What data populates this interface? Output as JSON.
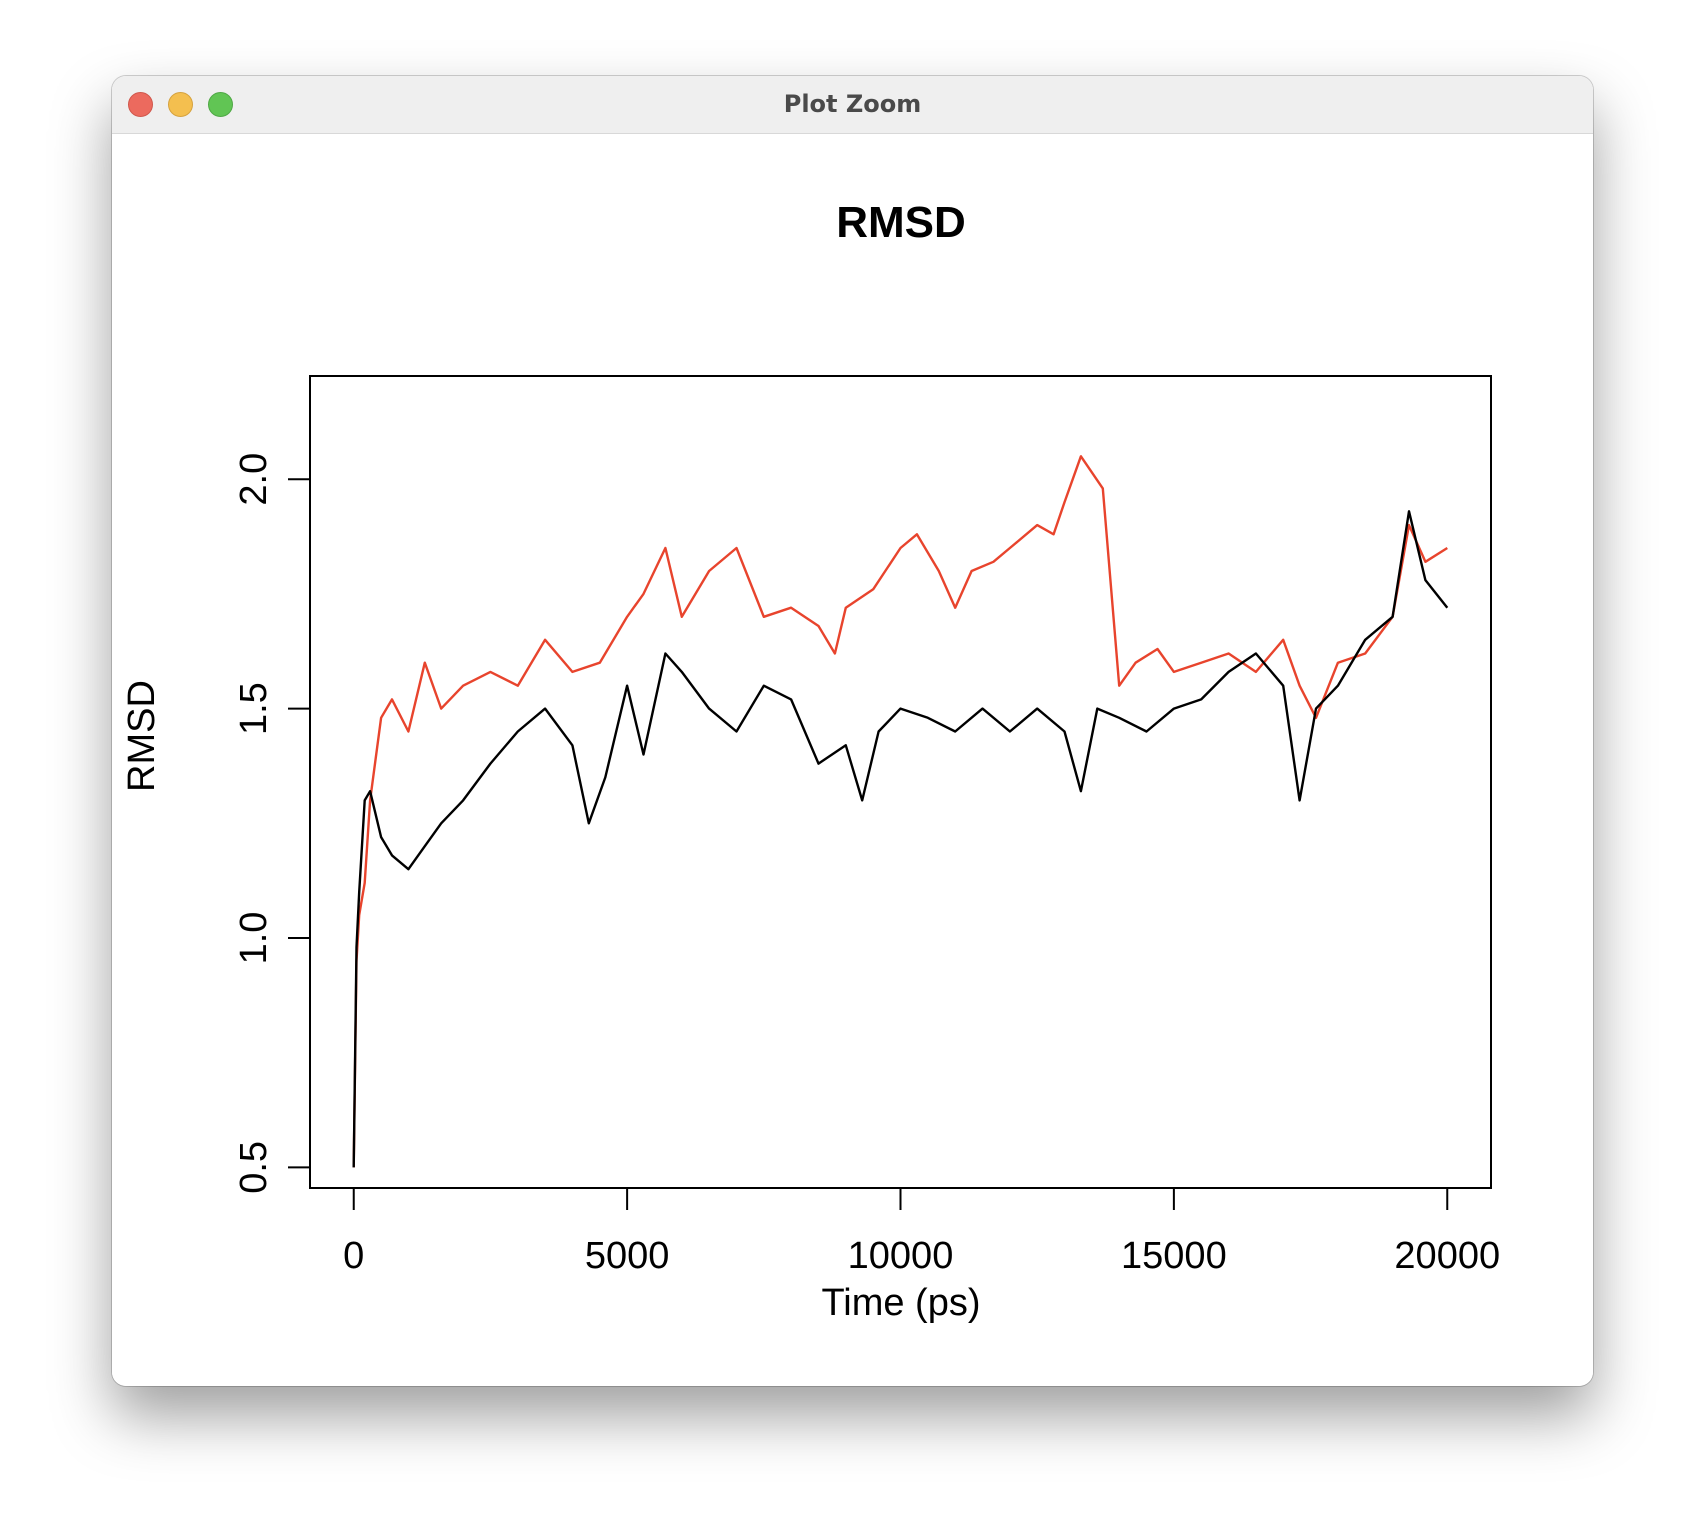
{
  "window": {
    "title": "Plot Zoom"
  },
  "colors": {
    "series_black": "#000000",
    "series_red": "#e8442d"
  },
  "chart_data": {
    "type": "line",
    "title": "RMSD",
    "xlabel": "Time (ps)",
    "ylabel": "RMSD",
    "xlim": [
      -800,
      20800
    ],
    "ylim": [
      0.455,
      2.225
    ],
    "xticks": [
      0,
      5000,
      10000,
      15000,
      20000
    ],
    "xtick_labels": [
      "0",
      "5000",
      "10000",
      "15000",
      "20000"
    ],
    "yticks": [
      0.5,
      1.0,
      1.5,
      2.0
    ],
    "ytick_labels": [
      "0.5",
      "1.0",
      "1.5",
      "2.0"
    ],
    "grid": false,
    "legend": "none",
    "series": [
      {
        "color": "#e8442d",
        "x": [
          0,
          50,
          100,
          200,
          300,
          500,
          700,
          1000,
          1300,
          1600,
          2000,
          2500,
          3000,
          3500,
          4000,
          4500,
          5000,
          5300,
          5700,
          6000,
          6500,
          7000,
          7500,
          8000,
          8500,
          8800,
          9000,
          9500,
          10000,
          10300,
          10700,
          11000,
          11300,
          11700,
          12000,
          12500,
          12800,
          13000,
          13300,
          13700,
          14000,
          14300,
          14700,
          15000,
          15500,
          16000,
          16500,
          17000,
          17300,
          17600,
          18000,
          18500,
          19000,
          19300,
          19600,
          20000
        ],
        "y": [
          0.5,
          0.95,
          1.05,
          1.12,
          1.3,
          1.48,
          1.52,
          1.45,
          1.6,
          1.5,
          1.55,
          1.58,
          1.55,
          1.65,
          1.58,
          1.6,
          1.7,
          1.75,
          1.85,
          1.7,
          1.8,
          1.85,
          1.7,
          1.72,
          1.68,
          1.62,
          1.72,
          1.76,
          1.85,
          1.88,
          1.8,
          1.72,
          1.8,
          1.82,
          1.85,
          1.9,
          1.88,
          1.95,
          2.05,
          1.98,
          1.55,
          1.6,
          1.63,
          1.58,
          1.6,
          1.62,
          1.58,
          1.65,
          1.55,
          1.48,
          1.6,
          1.62,
          1.7,
          1.9,
          1.82,
          1.85
        ]
      },
      {
        "color": "#000000",
        "x": [
          0,
          50,
          100,
          200,
          300,
          500,
          700,
          1000,
          1300,
          1600,
          2000,
          2500,
          3000,
          3500,
          4000,
          4300,
          4600,
          5000,
          5300,
          5700,
          6000,
          6500,
          7000,
          7500,
          8000,
          8500,
          9000,
          9300,
          9600,
          10000,
          10500,
          11000,
          11500,
          12000,
          12500,
          13000,
          13300,
          13600,
          14000,
          14500,
          15000,
          15500,
          16000,
          16500,
          17000,
          17300,
          17600,
          18000,
          18500,
          19000,
          19300,
          19600,
          20000
        ],
        "y": [
          0.5,
          0.98,
          1.1,
          1.3,
          1.32,
          1.22,
          1.18,
          1.15,
          1.2,
          1.25,
          1.3,
          1.38,
          1.45,
          1.5,
          1.42,
          1.25,
          1.35,
          1.55,
          1.4,
          1.62,
          1.58,
          1.5,
          1.45,
          1.55,
          1.52,
          1.38,
          1.42,
          1.3,
          1.45,
          1.5,
          1.48,
          1.45,
          1.5,
          1.45,
          1.5,
          1.45,
          1.32,
          1.5,
          1.48,
          1.45,
          1.5,
          1.52,
          1.58,
          1.62,
          1.55,
          1.3,
          1.5,
          1.55,
          1.65,
          1.7,
          1.93,
          1.78,
          1.72
        ]
      }
    ]
  }
}
